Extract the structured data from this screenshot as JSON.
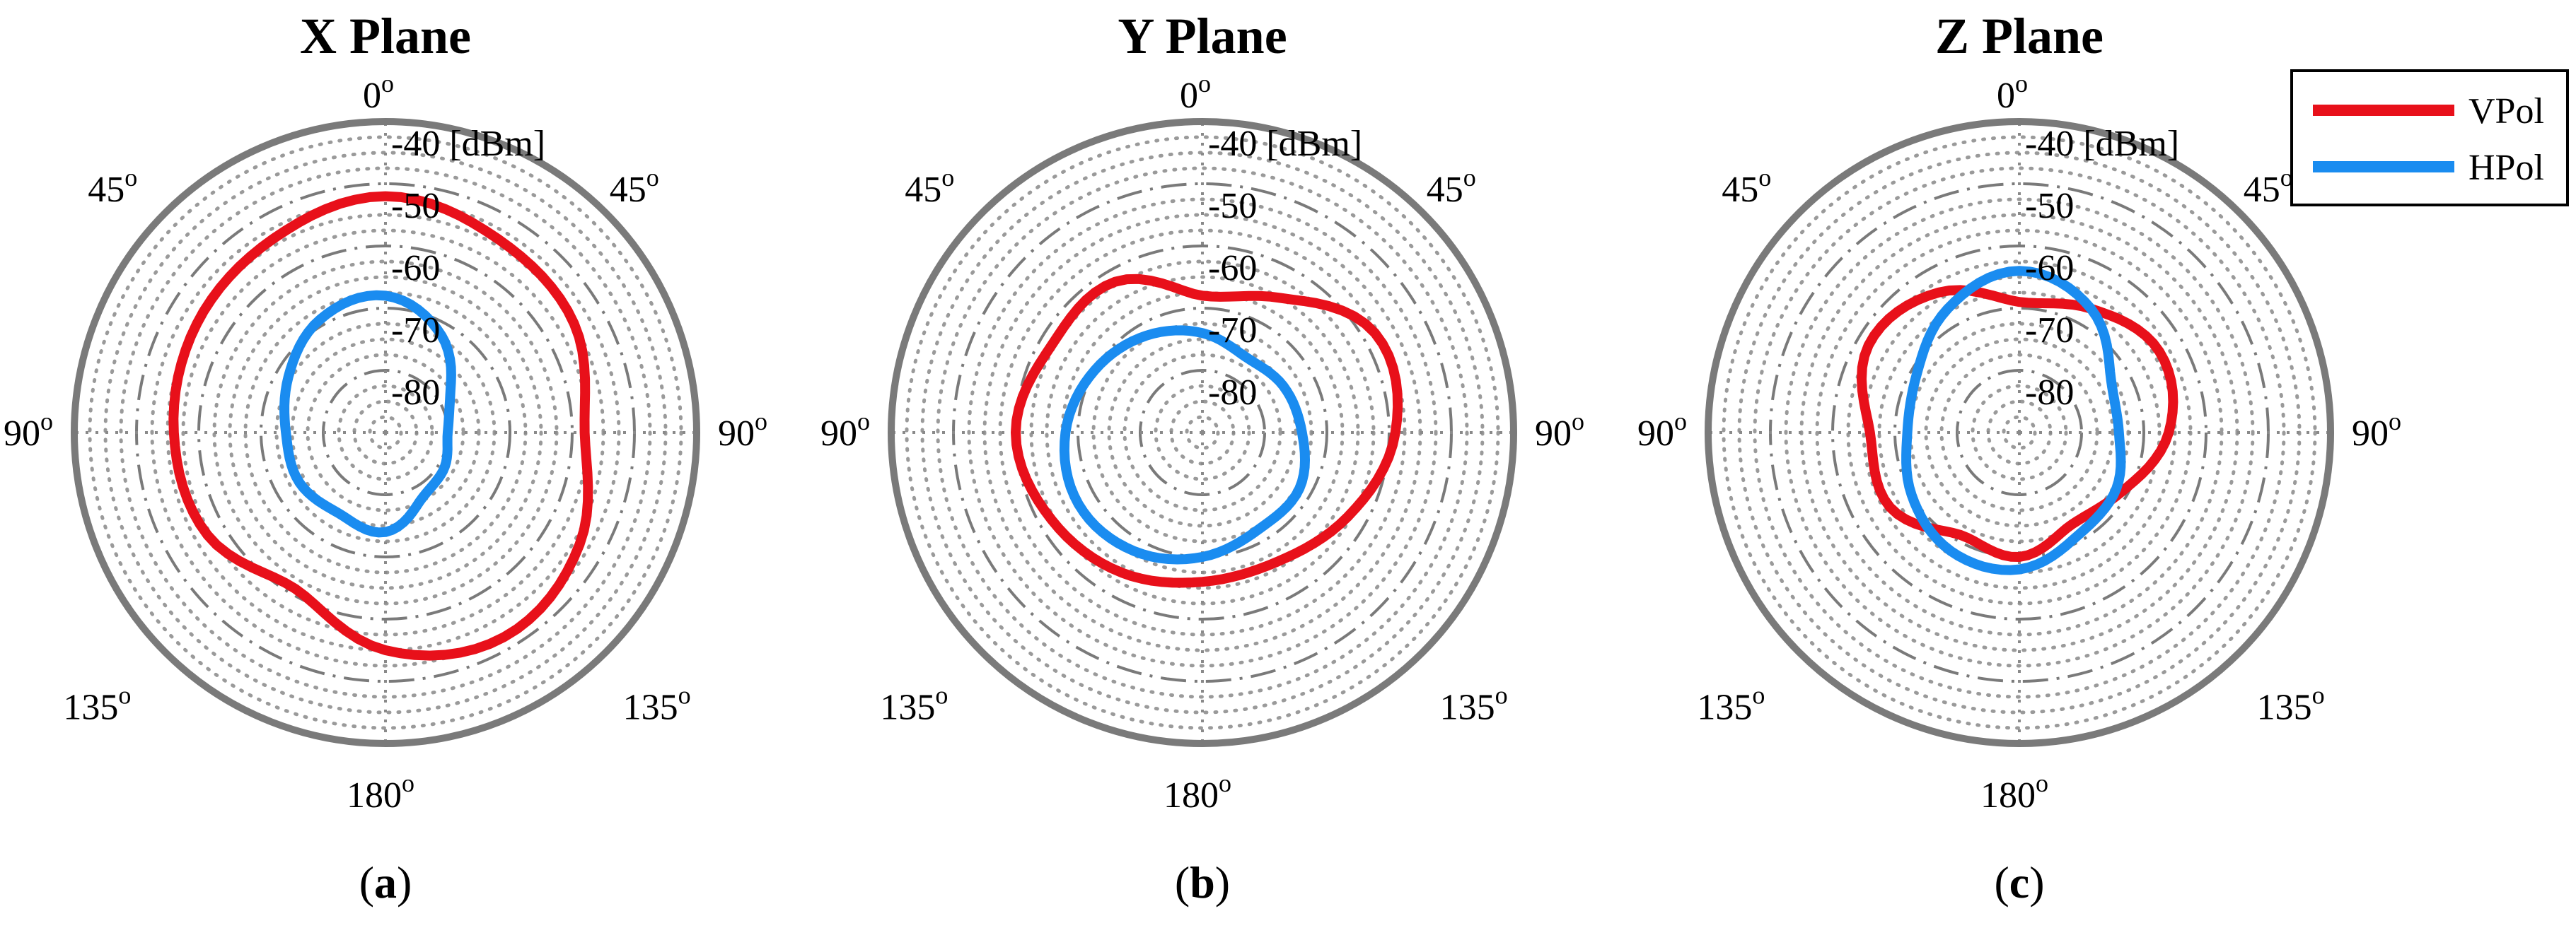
{
  "chart_data": [
    {
      "type": "polar_line",
      "title": "X Plane",
      "caption": "a",
      "r_unit": "[dBm]",
      "r_range": [
        -90,
        -40
      ],
      "r_ticks": [
        -40,
        -50,
        -60,
        -70,
        -80
      ],
      "angle_labels": [
        {
          "deg": 0,
          "text": "0",
          "sup": "o"
        },
        {
          "deg": 45,
          "text": "45",
          "sup": "o"
        },
        {
          "deg": -45,
          "text": "45",
          "sup": "o"
        },
        {
          "deg": 90,
          "text": "90",
          "sup": "o"
        },
        {
          "deg": -90,
          "text": "90",
          "sup": "o"
        },
        {
          "deg": 135,
          "text": "135",
          "sup": "o"
        },
        {
          "deg": -135,
          "text": "135",
          "sup": "o"
        },
        {
          "deg": 180,
          "text": "180",
          "sup": "o"
        }
      ],
      "theta": [
        0,
        30,
        60,
        90,
        120,
        150,
        180,
        210,
        240,
        270,
        300,
        330
      ],
      "series": [
        {
          "name": "VPol",
          "color": "#e8101a",
          "values": [
            -52,
            -54,
            -55,
            -58,
            -54,
            -52,
            -55,
            -61,
            -57,
            -56,
            -55,
            -54
          ]
        },
        {
          "name": "HPol",
          "color": "#1a8cf0",
          "values": [
            -68,
            -72,
            -78,
            -80,
            -79,
            -78,
            -74,
            -75,
            -74,
            -74,
            -72,
            -69
          ]
        }
      ]
    },
    {
      "type": "polar_line",
      "title": "Y Plane",
      "caption": "b",
      "r_unit": "[dBm]",
      "r_range": [
        -90,
        -40
      ],
      "r_ticks": [
        -40,
        -50,
        -60,
        -70,
        -80
      ],
      "angle_labels": [
        {
          "deg": 0,
          "text": "0",
          "sup": "o"
        },
        {
          "deg": 45,
          "text": "45",
          "sup": "o"
        },
        {
          "deg": -45,
          "text": "45",
          "sup": "o"
        },
        {
          "deg": 90,
          "text": "90",
          "sup": "o"
        },
        {
          "deg": -90,
          "text": "90",
          "sup": "o"
        },
        {
          "deg": 135,
          "text": "135",
          "sup": "o"
        },
        {
          "deg": -135,
          "text": "135",
          "sup": "o"
        },
        {
          "deg": 180,
          "text": "180",
          "sup": "o"
        }
      ],
      "theta": [
        0,
        30,
        60,
        90,
        120,
        150,
        180,
        210,
        240,
        270,
        300,
        330
      ],
      "series": [
        {
          "name": "VPol",
          "color": "#e8101a",
          "values": [
            -68,
            -65,
            -58,
            -59,
            -63,
            -66,
            -66,
            -64,
            -62,
            -60,
            -62,
            -62
          ]
        },
        {
          "name": "HPol",
          "color": "#1a8cf0",
          "values": [
            -74,
            -76,
            -75,
            -74,
            -72,
            -72,
            -70,
            -68,
            -67,
            -68,
            -70,
            -72
          ]
        }
      ]
    },
    {
      "type": "polar_line",
      "title": "Z Plane",
      "caption": "c",
      "r_unit": "[dBm]",
      "r_range": [
        -90,
        -40
      ],
      "r_ticks": [
        -40,
        -50,
        -60,
        -70,
        -80
      ],
      "angle_labels": [
        {
          "deg": 0,
          "text": "0",
          "sup": "o"
        },
        {
          "deg": 45,
          "text": "45",
          "sup": "o"
        },
        {
          "deg": -45,
          "text": "45",
          "sup": "o"
        },
        {
          "deg": 90,
          "text": "90",
          "sup": "o"
        },
        {
          "deg": -90,
          "text": "90",
          "sup": "o"
        },
        {
          "deg": 135,
          "text": "135",
          "sup": "o"
        },
        {
          "deg": -135,
          "text": "135",
          "sup": "o"
        },
        {
          "deg": 180,
          "text": "180",
          "sup": "o"
        }
      ],
      "theta": [
        0,
        30,
        60,
        90,
        120,
        150,
        180,
        210,
        240,
        270,
        300,
        330
      ],
      "series": [
        {
          "name": "VPol",
          "color": "#e8101a",
          "values": [
            -69,
            -67,
            -64,
            -66,
            -71,
            -73,
            -70,
            -71,
            -66,
            -66,
            -62,
            -64
          ]
        },
        {
          "name": "HPol",
          "color": "#1a8cf0",
          "values": [
            -64,
            -67,
            -73,
            -74,
            -72,
            -71,
            -68,
            -68,
            -70,
            -72,
            -71,
            -67
          ]
        }
      ]
    }
  ],
  "legend": {
    "position": "top-right",
    "items": [
      {
        "label": "VPol",
        "color": "#e8101a"
      },
      {
        "label": "HPol",
        "color": "#1a8cf0"
      }
    ]
  },
  "grid_color": "#7a7a7a"
}
